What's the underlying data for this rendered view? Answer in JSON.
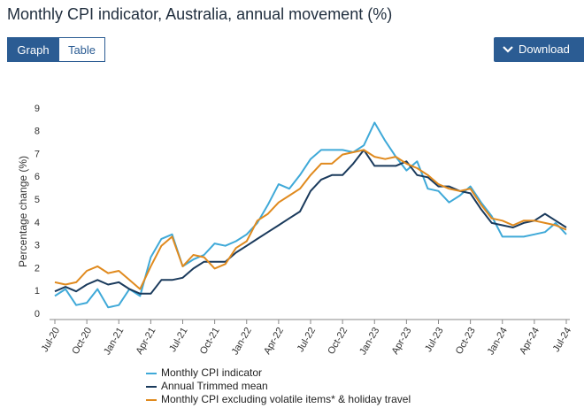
{
  "header": {
    "title": "Monthly CPI indicator, Australia, annual movement (%)",
    "tabs": [
      "Graph",
      "Table"
    ],
    "download": "Download"
  },
  "chart_data": {
    "type": "line",
    "ylabel": "Percentage change (%)",
    "categories": [
      "Jul-20",
      null,
      null,
      "Oct-20",
      null,
      null,
      "Jan-21",
      null,
      null,
      "Apr-21",
      null,
      null,
      "Jul-21",
      null,
      null,
      "Oct-21",
      null,
      null,
      "Jan-22",
      null,
      null,
      "Apr-22",
      null,
      null,
      "Jul-22",
      null,
      null,
      "Oct-22",
      null,
      null,
      "Jan-23",
      null,
      null,
      "Apr-23",
      null,
      null,
      "Jul-23",
      null,
      null,
      "Oct-23",
      null,
      null,
      "Jan-24",
      null,
      null,
      "Apr-24",
      null,
      null,
      "Jul-24"
    ],
    "series": [
      {
        "name": "Monthly CPI indicator",
        "color": "#3fa9d8",
        "values": [
          0.8,
          1.1,
          0.4,
          0.5,
          1.1,
          0.3,
          0.4,
          1.1,
          0.8,
          2.5,
          3.3,
          3.5,
          2.1,
          2.4,
          2.6,
          3.1,
          3.0,
          3.2,
          3.5,
          4.0,
          4.8,
          5.7,
          5.5,
          6.1,
          6.8,
          7.2,
          7.2,
          7.2,
          7.1,
          7.4,
          8.4,
          7.6,
          6.9,
          6.3,
          6.7,
          5.5,
          5.4,
          4.9,
          5.2,
          5.6,
          4.9,
          4.3,
          3.4,
          3.4,
          3.4,
          3.5,
          3.6,
          4.0,
          3.5
        ]
      },
      {
        "name": "Annual Trimmed mean",
        "color": "#1a3a5c",
        "values": [
          1.0,
          1.2,
          1.0,
          1.3,
          1.5,
          1.3,
          1.4,
          1.1,
          0.9,
          0.9,
          1.5,
          1.5,
          1.6,
          2.0,
          2.3,
          2.3,
          2.3,
          2.7,
          3.0,
          3.3,
          3.6,
          3.9,
          4.2,
          4.5,
          5.4,
          5.9,
          6.1,
          6.1,
          6.6,
          7.2,
          6.5,
          6.5,
          6.5,
          6.7,
          6.1,
          6.0,
          5.6,
          5.6,
          5.4,
          5.3,
          4.6,
          4.0,
          3.9,
          3.8,
          4.0,
          4.1,
          4.4,
          4.1,
          3.8
        ]
      },
      {
        "name": "Monthly CPI excluding volatile items* & holiday travel",
        "color": "#e08a1e",
        "values": [
          1.4,
          1.3,
          1.4,
          1.9,
          2.1,
          1.8,
          1.9,
          1.5,
          1.1,
          2.1,
          3.0,
          3.4,
          2.1,
          2.6,
          2.5,
          2.0,
          2.2,
          2.9,
          3.2,
          4.1,
          4.4,
          4.9,
          5.2,
          5.5,
          6.1,
          6.6,
          6.6,
          7.0,
          7.1,
          7.2,
          6.9,
          6.8,
          6.9,
          6.6,
          6.4,
          6.1,
          5.7,
          5.5,
          5.4,
          5.5,
          4.8,
          4.2,
          4.1,
          3.9,
          4.1,
          4.1,
          4.0,
          3.9,
          3.7
        ]
      }
    ],
    "ylim": [
      0,
      9
    ],
    "yticks": [
      0,
      1,
      2,
      3,
      4,
      5,
      6,
      7,
      8,
      9
    ],
    "grid": false,
    "legend": "bottom"
  }
}
